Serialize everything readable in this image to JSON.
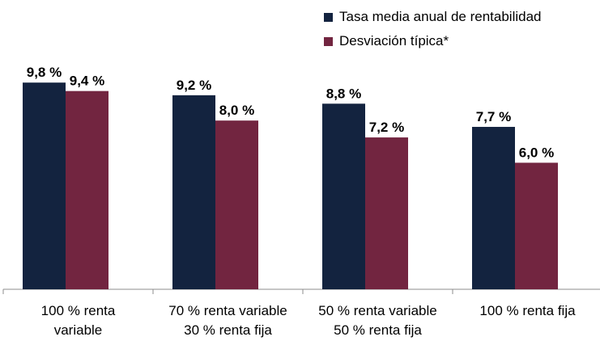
{
  "chart_data": {
    "type": "bar",
    "categories": [
      [
        "100 % renta",
        "variable"
      ],
      [
        "70 % renta variable",
        "30 % renta fija"
      ],
      [
        "50 % renta variable",
        "50 % renta fija"
      ],
      [
        "100 % renta fija"
      ]
    ],
    "series": [
      {
        "name": "Tasa media anual de rentabilidad",
        "color": "#13233f",
        "values": [
          9.8,
          9.2,
          8.8,
          7.7
        ],
        "labels": [
          "9,8 %",
          "9,2 %",
          "8,8 %",
          "7,7 %"
        ]
      },
      {
        "name": "Desviación típica*",
        "color": "#722540",
        "values": [
          9.4,
          8.0,
          7.2,
          6.0
        ],
        "labels": [
          "9,4 %",
          "8,0 %",
          "7,2 %",
          "6,0 %"
        ]
      }
    ],
    "ylim": [
      0,
      10
    ],
    "legend": "top-right",
    "grid": false
  }
}
